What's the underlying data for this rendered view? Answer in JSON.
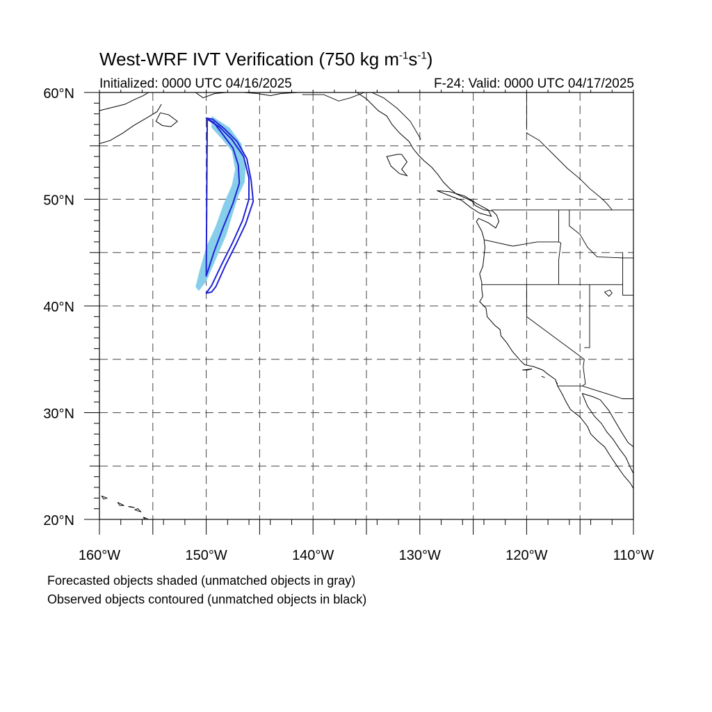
{
  "title": {
    "main": "West-WRF IVT Verification (750 kg m",
    "exp1": "-1",
    "mid": "s",
    "exp2": "-1",
    "close": ")"
  },
  "subtitle_left": "Initialized: 0000 UTC 04/16/2025",
  "subtitle_right": "F-24: Valid: 0000 UTC 04/17/2025",
  "notes": [
    "Forecasted objects shaded (unmatched objects in gray)",
    "Observed objects contoured (unmatched objects in black)"
  ],
  "map": {
    "lon_range": [
      -160,
      -110
    ],
    "lat_range": [
      20,
      60
    ],
    "lat_labels": [
      "60°N",
      "50°N",
      "40°N",
      "30°N",
      "20°N"
    ],
    "lon_labels": [
      "160°W",
      "150°W",
      "140°W",
      "130°W",
      "120°W",
      "110°W"
    ],
    "gridlines": "dashed every 5°",
    "colors": {
      "forecast_fill": "#87ceeb",
      "observed_contour": "#1f22d6",
      "coastline": "#000000",
      "grid": "#444444"
    },
    "forecast_object": {
      "label": "forecasted IVT object (matched)",
      "lonlat": [
        [
          -149.5,
          57.8
        ],
        [
          -147.8,
          56.7
        ],
        [
          -146.7,
          55.2
        ],
        [
          -146.3,
          53.1
        ],
        [
          -146.4,
          51.6
        ],
        [
          -147.0,
          50.3
        ],
        [
          -147.5,
          48.7
        ],
        [
          -148.1,
          46.7
        ],
        [
          -149.0,
          44.6
        ],
        [
          -150.0,
          42.3
        ],
        [
          -150.7,
          41.4
        ],
        [
          -151.0,
          41.8
        ],
        [
          -150.6,
          43.4
        ],
        [
          -150.0,
          45.5
        ],
        [
          -149.1,
          47.5
        ],
        [
          -148.4,
          49.5
        ],
        [
          -147.6,
          51.3
        ],
        [
          -147.3,
          52.8
        ],
        [
          -147.6,
          54.5
        ],
        [
          -148.5,
          55.6
        ],
        [
          -149.5,
          56.7
        ]
      ]
    },
    "observed_object": {
      "label": "observed IVT object (matched)",
      "lonlat": [
        [
          -149.9,
          57.5
        ],
        [
          -148.8,
          56.8
        ],
        [
          -147.6,
          55.6
        ],
        [
          -146.5,
          54.0
        ],
        [
          -146.0,
          52.0
        ],
        [
          -146.0,
          50.0
        ],
        [
          -146.6,
          48.0
        ],
        [
          -147.5,
          46.0
        ],
        [
          -148.6,
          43.8
        ],
        [
          -149.5,
          41.9
        ],
        [
          -150.0,
          41.2
        ],
        [
          -149.5,
          41.3
        ],
        [
          -149.1,
          41.8
        ],
        [
          -148.2,
          43.8
        ],
        [
          -147.2,
          45.8
        ],
        [
          -146.3,
          47.7
        ],
        [
          -145.6,
          49.8
        ],
        [
          -145.8,
          51.8
        ],
        [
          -146.2,
          53.8
        ],
        [
          -147.1,
          55.4
        ],
        [
          -148.3,
          56.6
        ],
        [
          -149.4,
          57.5
        ],
        [
          -150.0,
          57.6
        ],
        [
          -149.3,
          57.2
        ],
        [
          -148.4,
          56.0
        ],
        [
          -147.5,
          54.8
        ],
        [
          -147.0,
          53.2
        ],
        [
          -146.9,
          51.5
        ],
        [
          -147.5,
          49.6
        ],
        [
          -148.4,
          47.4
        ],
        [
          -149.3,
          45.0
        ],
        [
          -150.0,
          42.8
        ]
      ]
    },
    "coastlines": [
      [
        [
          -135.9,
          60.0
        ],
        [
          -135.0,
          59.4
        ],
        [
          -134.4,
          58.8
        ],
        [
          -133.9,
          58.3
        ],
        [
          -133.1,
          57.8
        ],
        [
          -132.6,
          57.0
        ],
        [
          -131.9,
          56.2
        ],
        [
          -131.0,
          55.4
        ],
        [
          -130.6,
          54.7
        ],
        [
          -130.1,
          54.1
        ],
        [
          -129.6,
          53.6
        ],
        [
          -128.9,
          53.0
        ],
        [
          -128.3,
          52.3
        ],
        [
          -127.8,
          51.6
        ],
        [
          -127.2,
          51.0
        ],
        [
          -126.6,
          50.5
        ],
        [
          -125.7,
          50.1
        ],
        [
          -125.1,
          49.8
        ],
        [
          -124.8,
          49.4
        ],
        [
          -124.0,
          49.0
        ],
        [
          -123.2,
          48.9
        ],
        [
          -122.8,
          48.5
        ],
        [
          -122.6,
          47.9
        ],
        [
          -122.9,
          47.3
        ],
        [
          -123.6,
          47.8
        ],
        [
          -124.5,
          48.2
        ],
        [
          -124.7,
          47.9
        ],
        [
          -124.2,
          47.0
        ],
        [
          -124.0,
          46.3
        ],
        [
          -123.9,
          45.5
        ],
        [
          -124.0,
          44.6
        ],
        [
          -124.1,
          43.7
        ],
        [
          -124.4,
          43.0
        ],
        [
          -124.2,
          42.2
        ],
        [
          -124.2,
          41.5
        ],
        [
          -124.1,
          40.9
        ],
        [
          -124.4,
          40.4
        ],
        [
          -123.8,
          39.8
        ],
        [
          -123.7,
          39.0
        ],
        [
          -123.0,
          38.2
        ],
        [
          -122.5,
          37.8
        ],
        [
          -122.4,
          37.2
        ],
        [
          -121.9,
          36.6
        ],
        [
          -121.3,
          35.7
        ],
        [
          -120.6,
          34.9
        ],
        [
          -120.2,
          34.5
        ],
        [
          -119.3,
          34.3
        ],
        [
          -118.5,
          34.0
        ],
        [
          -118.0,
          33.6
        ],
        [
          -117.3,
          33.1
        ],
        [
          -117.1,
          32.5
        ],
        [
          -116.7,
          31.8
        ],
        [
          -116.3,
          31.0
        ],
        [
          -115.9,
          30.3
        ],
        [
          -115.0,
          29.6
        ],
        [
          -114.3,
          28.7
        ],
        [
          -114.0,
          28.0
        ],
        [
          -113.3,
          27.3
        ],
        [
          -112.7,
          26.8
        ],
        [
          -112.2,
          26.0
        ],
        [
          -111.6,
          25.1
        ],
        [
          -110.9,
          24.1
        ],
        [
          -110.3,
          23.4
        ],
        [
          -110.0,
          22.9
        ]
      ],
      [
        [
          -114.8,
          31.8
        ],
        [
          -114.3,
          30.6
        ],
        [
          -113.6,
          29.6
        ],
        [
          -113.0,
          29.0
        ],
        [
          -112.5,
          28.2
        ],
        [
          -111.9,
          27.5
        ],
        [
          -111.3,
          26.6
        ],
        [
          -110.7,
          25.8
        ],
        [
          -110.3,
          24.9
        ],
        [
          -110.0,
          24.3
        ]
      ],
      [
        [
          -114.8,
          31.8
        ],
        [
          -113.8,
          31.5
        ],
        [
          -113.1,
          31.2
        ],
        [
          -112.3,
          30.2
        ],
        [
          -111.6,
          29.0
        ],
        [
          -111.0,
          28.0
        ],
        [
          -110.5,
          27.2
        ],
        [
          -110.0,
          26.8
        ]
      ],
      [
        [
          -160.0,
          58.3
        ],
        [
          -158.8,
          58.6
        ],
        [
          -157.6,
          58.9
        ],
        [
          -156.8,
          59.3
        ],
        [
          -155.9,
          59.7
        ],
        [
          -155.4,
          60.0
        ]
      ],
      [
        [
          -160.0,
          55.2
        ],
        [
          -159.0,
          55.5
        ],
        [
          -157.8,
          56.2
        ],
        [
          -156.8,
          56.9
        ],
        [
          -155.6,
          57.6
        ],
        [
          -154.6,
          58.2
        ],
        [
          -154.2,
          58.9
        ]
      ],
      [
        [
          -154.3,
          58.1
        ],
        [
          -153.5,
          57.9
        ],
        [
          -152.7,
          57.3
        ],
        [
          -153.3,
          56.8
        ],
        [
          -154.1,
          56.9
        ],
        [
          -154.7,
          57.3
        ],
        [
          -154.3,
          58.1
        ]
      ],
      [
        [
          -151.0,
          60.0
        ],
        [
          -150.3,
          59.5
        ],
        [
          -149.2,
          59.9
        ],
        [
          -148.1,
          60.0
        ]
      ],
      [
        [
          -146.5,
          60.0
        ],
        [
          -145.2,
          59.9
        ],
        [
          -144.0,
          59.7
        ],
        [
          -143.0,
          59.9
        ],
        [
          -141.4,
          60.0
        ]
      ],
      [
        [
          -131.7,
          54.2
        ],
        [
          -131.2,
          53.5
        ],
        [
          -131.7,
          52.8
        ],
        [
          -131.2,
          52.2
        ],
        [
          -131.9,
          52.4
        ],
        [
          -132.7,
          53.1
        ],
        [
          -133.1,
          54.0
        ],
        [
          -132.1,
          54.2
        ],
        [
          -131.7,
          54.2
        ]
      ],
      [
        [
          -128.4,
          50.8
        ],
        [
          -127.4,
          50.4
        ],
        [
          -126.1,
          49.9
        ],
        [
          -125.2,
          49.2
        ],
        [
          -124.4,
          48.7
        ],
        [
          -123.3,
          48.4
        ],
        [
          -123.6,
          49.0
        ],
        [
          -124.7,
          49.6
        ],
        [
          -125.8,
          50.3
        ],
        [
          -127.2,
          50.7
        ],
        [
          -128.4,
          50.8
        ]
      ],
      [
        [
          -155.9,
          20.2
        ],
        [
          -155.1,
          19.3
        ],
        [
          -154.8,
          19.6
        ],
        [
          -155.6,
          20.1
        ],
        [
          -155.9,
          20.2
        ]
      ],
      [
        [
          -156.7,
          20.9
        ],
        [
          -156.1,
          20.7
        ],
        [
          -156.4,
          21.0
        ],
        [
          -156.7,
          20.9
        ]
      ],
      [
        [
          -157.3,
          21.2
        ],
        [
          -156.7,
          21.1
        ],
        [
          -157.1,
          21.2
        ],
        [
          -157.3,
          21.2
        ]
      ],
      [
        [
          -158.3,
          21.6
        ],
        [
          -157.7,
          21.3
        ],
        [
          -158.1,
          21.3
        ],
        [
          -158.3,
          21.6
        ]
      ],
      [
        [
          -159.8,
          22.2
        ],
        [
          -159.3,
          22.0
        ],
        [
          -159.6,
          21.9
        ],
        [
          -159.8,
          22.2
        ]
      ],
      [
        [
          -119.5,
          34.1
        ],
        [
          -119.9,
          34.0
        ],
        [
          -120.4,
          34.0
        ],
        [
          -119.5,
          34.1
        ]
      ],
      [
        [
          -118.6,
          33.4
        ],
        [
          -118.3,
          33.3
        ],
        [
          -118.6,
          33.4
        ]
      ]
    ],
    "borders": [
      [
        [
          -141.0,
          60.0
        ],
        [
          -141.0,
          60.0
        ]
      ],
      [
        [
          -123.3,
          49.0
        ],
        [
          -110.0,
          49.0
        ]
      ],
      [
        [
          -117.0,
          49.0
        ],
        [
          -117.0,
          46.0
        ],
        [
          -116.8,
          45.9
        ],
        [
          -117.0,
          44.3
        ],
        [
          -117.0,
          42.0
        ]
      ],
      [
        [
          -124.2,
          42.0
        ],
        [
          -111.0,
          42.0
        ]
      ],
      [
        [
          -124.0,
          46.2
        ],
        [
          -121.3,
          45.6
        ],
        [
          -119.0,
          46.0
        ],
        [
          -117.0,
          46.0
        ]
      ],
      [
        [
          -120.0,
          42.0
        ],
        [
          -120.0,
          39.0
        ],
        [
          -114.6,
          35.0
        ],
        [
          -114.7,
          34.3
        ],
        [
          -114.5,
          32.7
        ],
        [
          -114.8,
          32.5
        ],
        [
          -117.1,
          32.5
        ]
      ],
      [
        [
          -114.1,
          42.0
        ],
        [
          -114.1,
          36.1
        ],
        [
          -114.6,
          36.1
        ]
      ],
      [
        [
          -111.0,
          45.0
        ],
        [
          -111.0,
          41.0
        ],
        [
          -110.0,
          41.0
        ]
      ],
      [
        [
          -114.8,
          32.5
        ],
        [
          -111.0,
          31.3
        ],
        [
          -110.0,
          31.3
        ]
      ],
      [
        [
          -116.0,
          49.0
        ],
        [
          -116.0,
          47.5
        ],
        [
          -115.0,
          46.7
        ],
        [
          -114.3,
          45.5
        ],
        [
          -113.4,
          44.6
        ],
        [
          -111.0,
          44.5
        ],
        [
          -110.0,
          44.5
        ]
      ],
      [
        [
          -120.0,
          56.5
        ],
        [
          -120.0,
          60.0
        ]
      ],
      [
        [
          -120.0,
          56.2
        ],
        [
          -118.8,
          55.5
        ],
        [
          -117.5,
          54.2
        ],
        [
          -116.2,
          52.9
        ],
        [
          -115.0,
          51.9
        ],
        [
          -114.1,
          51.0
        ],
        [
          -113.0,
          50.1
        ],
        [
          -112.5,
          49.6
        ],
        [
          -112.0,
          49.0
        ]
      ],
      [
        [
          -129.9,
          55.6
        ],
        [
          -130.9,
          57.3
        ],
        [
          -132.1,
          58.5
        ],
        [
          -133.4,
          59.5
        ],
        [
          -134.5,
          60.0
        ]
      ],
      [
        [
          -141.0,
          59.8
        ],
        [
          -139.0,
          59.8
        ],
        [
          -137.6,
          59.2
        ],
        [
          -136.5,
          59.5
        ],
        [
          -135.2,
          60.0
        ]
      ],
      [
        [
          -117.3,
          33.0
        ],
        [
          -117.1,
          32.7
        ]
      ]
    ],
    "lakes": [
      [
        [
          -112.7,
          41.3
        ],
        [
          -112.3,
          40.9
        ],
        [
          -112.0,
          41.2
        ],
        [
          -112.2,
          41.5
        ],
        [
          -112.7,
          41.3
        ]
      ]
    ]
  }
}
